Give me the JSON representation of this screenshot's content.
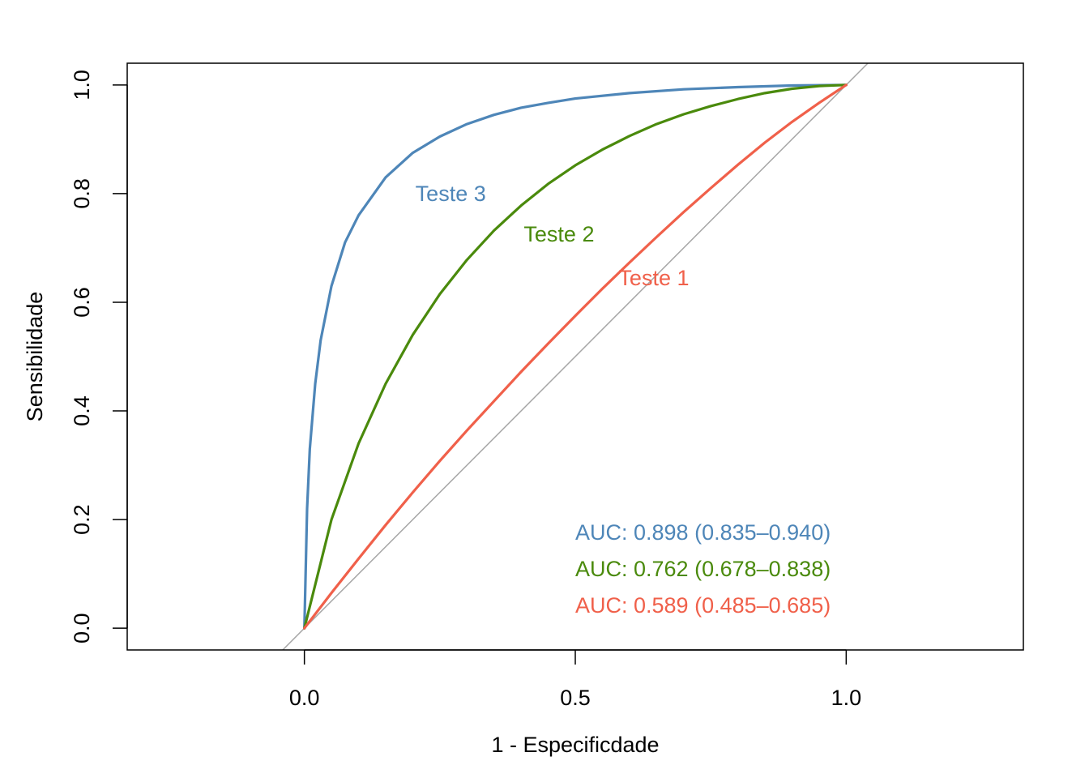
{
  "chart_data": {
    "type": "line",
    "title": "",
    "xlabel": "1 - Especificdade",
    "ylabel": "Sensibilidade",
    "xlim": [
      -0.327,
      1.327
    ],
    "ylim": [
      -0.04,
      1.04
    ],
    "x_ticks": [
      {
        "value": 0.0,
        "label": "0.0"
      },
      {
        "value": 0.5,
        "label": "0.5"
      },
      {
        "value": 1.0,
        "label": "1.0"
      }
    ],
    "y_ticks": [
      {
        "value": 0.0,
        "label": "0.0"
      },
      {
        "value": 0.2,
        "label": "0.2"
      },
      {
        "value": 0.4,
        "label": "0.4"
      },
      {
        "value": 0.6,
        "label": "0.6"
      },
      {
        "value": 0.8,
        "label": "0.8"
      },
      {
        "value": 1.0,
        "label": "1.0"
      }
    ],
    "grid": false,
    "reference_line": {
      "from": [
        0,
        0
      ],
      "to": [
        1,
        1
      ],
      "color": "#a6a6a6"
    },
    "series": [
      {
        "name": "Teste 1",
        "color": "#f0604a",
        "x": [
          0,
          0.05,
          0.1,
          0.15,
          0.2,
          0.25,
          0.3,
          0.35,
          0.4,
          0.45,
          0.5,
          0.55,
          0.6,
          0.65,
          0.7,
          0.75,
          0.8,
          0.85,
          0.9,
          0.95,
          1.0
        ],
        "y": [
          0,
          0.065,
          0.128,
          0.19,
          0.25,
          0.308,
          0.364,
          0.418,
          0.472,
          0.524,
          0.575,
          0.625,
          0.673,
          0.72,
          0.766,
          0.81,
          0.853,
          0.894,
          0.932,
          0.967,
          1.0
        ],
        "label": {
          "text": "Teste 1",
          "x": 0.645,
          "y": 0.645
        },
        "auc_text": "AUC: 0.589 (0.485–0.685)"
      },
      {
        "name": "Teste 2",
        "color": "#4a8a0c",
        "x": [
          0,
          0.05,
          0.1,
          0.15,
          0.2,
          0.25,
          0.3,
          0.35,
          0.4,
          0.45,
          0.5,
          0.55,
          0.6,
          0.65,
          0.7,
          0.75,
          0.8,
          0.85,
          0.9,
          0.95,
          1.0
        ],
        "y": [
          0,
          0.2,
          0.34,
          0.45,
          0.54,
          0.615,
          0.678,
          0.732,
          0.778,
          0.818,
          0.852,
          0.881,
          0.906,
          0.928,
          0.946,
          0.961,
          0.974,
          0.985,
          0.993,
          0.998,
          1.0
        ],
        "label": {
          "text": "Teste 2",
          "x": 0.47,
          "y": 0.725
        },
        "auc_text": "AUC: 0.762 (0.678–0.838)"
      },
      {
        "name": "Teste 3",
        "color": "#4e86b8",
        "x": [
          0,
          0.005,
          0.01,
          0.02,
          0.03,
          0.05,
          0.075,
          0.1,
          0.15,
          0.2,
          0.25,
          0.3,
          0.35,
          0.4,
          0.45,
          0.5,
          0.6,
          0.7,
          0.8,
          0.9,
          1.0
        ],
        "y": [
          0,
          0.22,
          0.33,
          0.45,
          0.53,
          0.63,
          0.71,
          0.76,
          0.83,
          0.875,
          0.905,
          0.928,
          0.945,
          0.958,
          0.967,
          0.975,
          0.985,
          0.992,
          0.996,
          0.999,
          1.0
        ],
        "label": {
          "text": "Teste 3",
          "x": 0.27,
          "y": 0.8
        },
        "auc_text": "AUC: 0.898 (0.835–0.940)"
      }
    ],
    "auc_legend_placement": "bottom-right"
  }
}
